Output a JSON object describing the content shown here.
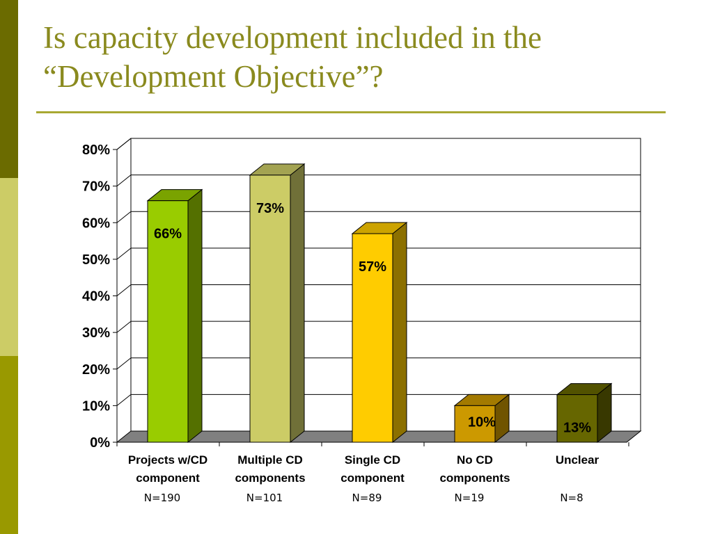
{
  "slide": {
    "title_lines": [
      "Is capacity development included in the",
      "“Development Objective”?"
    ],
    "title_color": "#8a8a1e",
    "rule_color": "#a8a832",
    "side_band_colors": [
      "#6b6b00",
      "#cccc66",
      "#999900"
    ]
  },
  "chart_data": {
    "type": "bar",
    "categories": [
      [
        "Projects w/CD",
        "component"
      ],
      [
        "Multiple CD",
        "components"
      ],
      [
        "Single CD",
        "component"
      ],
      [
        "No CD",
        "components"
      ],
      [
        "Unclear"
      ]
    ],
    "values": [
      66,
      73,
      57,
      10,
      13
    ],
    "data_labels": [
      "66%",
      "73%",
      "57%",
      "10%",
      "13%"
    ],
    "sample_sizes": [
      "N=190",
      "N=101",
      "N=89",
      "N=19",
      "N=8"
    ],
    "bar_colors": [
      "#99cc00",
      "#cccc66",
      "#ffcc00",
      "#cc9900",
      "#666600"
    ],
    "y_ticks": [
      "0%",
      "10%",
      "20%",
      "30%",
      "40%",
      "50%",
      "60%",
      "70%",
      "80%"
    ],
    "ylim": [
      0,
      80
    ],
    "grid": true,
    "legend": "none",
    "title": "",
    "xlabel": "",
    "ylabel": ""
  }
}
